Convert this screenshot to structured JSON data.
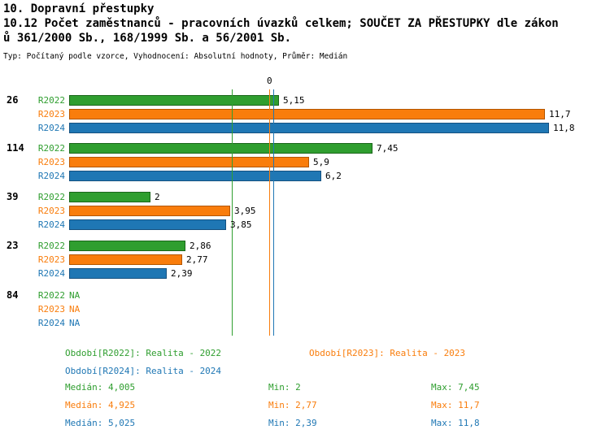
{
  "title": {
    "line1": "10. Dopravní přestupky",
    "line2": "10.12 Počet zaměstnanců - pracovních úvazků celkem; SOUČET ZA PŘESTUPKY dle zákon",
    "line3": "ů 361/2000 Sb., 168/1999 Sb. a 56/2001 Sb.",
    "subtitle": "Typ: Počítaný podle vzorce, Vyhodnocení: Absolutní hodnoty, Průměr: Medián"
  },
  "colors": {
    "R2022": {
      "fill": "#2f9e2f",
      "border": "#1a661a"
    },
    "R2023": {
      "fill": "#f97d0c",
      "border": "#b35600"
    },
    "R2024": {
      "fill": "#1f77b4",
      "border": "#155180"
    }
  },
  "chart_data": {
    "type": "bar",
    "orientation": "horizontal",
    "x_axis": {
      "origin_label": "0",
      "xlim": [
        0,
        13
      ],
      "grid": false
    },
    "series_names": [
      "R2022",
      "R2023",
      "R2024"
    ],
    "groups": [
      {
        "id": "26",
        "bars": [
          {
            "series": "R2022",
            "value": 5.15,
            "label": "5,15"
          },
          {
            "series": "R2023",
            "value": 11.7,
            "label": "11,7"
          },
          {
            "series": "R2024",
            "value": 11.8,
            "label": "11,8"
          }
        ]
      },
      {
        "id": "114",
        "bars": [
          {
            "series": "R2022",
            "value": 7.45,
            "label": "7,45"
          },
          {
            "series": "R2023",
            "value": 5.9,
            "label": "5,9"
          },
          {
            "series": "R2024",
            "value": 6.2,
            "label": "6,2"
          }
        ]
      },
      {
        "id": "39",
        "bars": [
          {
            "series": "R2022",
            "value": 2,
            "label": "2"
          },
          {
            "series": "R2023",
            "value": 3.95,
            "label": "3,95"
          },
          {
            "series": "R2024",
            "value": 3.85,
            "label": "3,85"
          }
        ]
      },
      {
        "id": "23",
        "bars": [
          {
            "series": "R2022",
            "value": 2.86,
            "label": "2,86"
          },
          {
            "series": "R2023",
            "value": 2.77,
            "label": "2,77"
          },
          {
            "series": "R2024",
            "value": 2.39,
            "label": "2,39"
          }
        ]
      },
      {
        "id": "84",
        "bars": [
          {
            "series": "R2022",
            "value": null,
            "label": "NA"
          },
          {
            "series": "R2023",
            "value": null,
            "label": "NA"
          },
          {
            "series": "R2024",
            "value": null,
            "label": "NA"
          }
        ]
      }
    ],
    "median_lines": [
      {
        "series": "R2022",
        "value": 4.005
      },
      {
        "series": "R2023",
        "value": 4.925
      },
      {
        "series": "R2024",
        "value": 5.025
      }
    ],
    "stats_numeric": [
      {
        "series": "R2022",
        "median": 4.005,
        "min": 2,
        "max": 7.45
      },
      {
        "series": "R2023",
        "median": 4.925,
        "min": 2.77,
        "max": 11.7
      },
      {
        "series": "R2024",
        "median": 5.025,
        "min": 2.39,
        "max": 11.8
      }
    ]
  },
  "legend": {
    "items": [
      {
        "series": "R2022",
        "label": "Období[R2022]: Realita - 2022"
      },
      {
        "series": "R2023",
        "label": "Období[R2023]: Realita - 2023"
      },
      {
        "series": "R2024",
        "label": "Období[R2024]: Realita - 2024"
      }
    ]
  },
  "stats": [
    {
      "series": "R2022",
      "median": "Medián: 4,005",
      "min": "Min: 2",
      "max": "Max: 7,45"
    },
    {
      "series": "R2023",
      "median": "Medián: 4,925",
      "min": "Min: 2,77",
      "max": "Max: 11,7"
    },
    {
      "series": "R2024",
      "median": "Medián: 5,025",
      "min": "Min: 2,39",
      "max": "Max: 11,8"
    }
  ]
}
